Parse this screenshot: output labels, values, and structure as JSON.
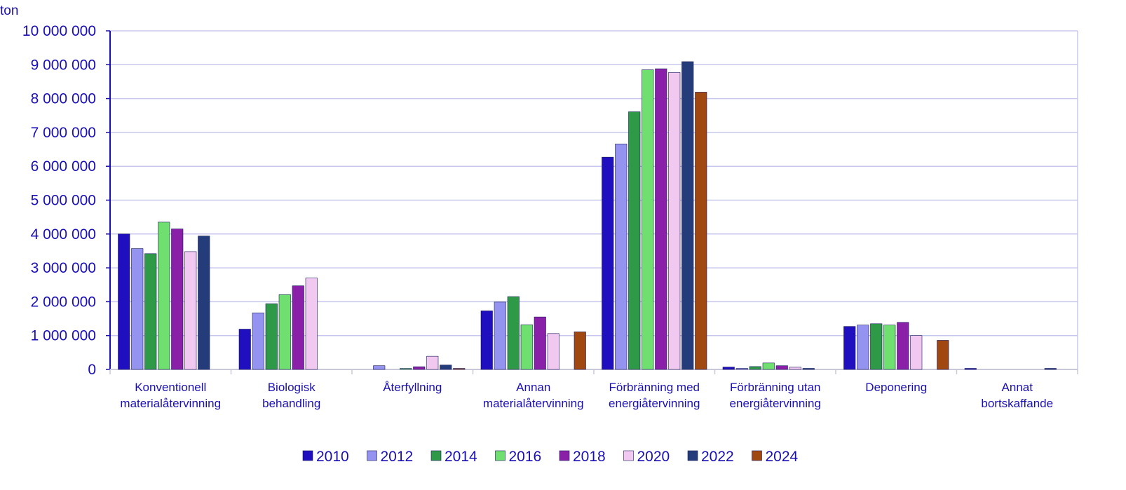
{
  "chart_data": {
    "type": "bar",
    "ylabel": "ton",
    "ylim": [
      0,
      10000000
    ],
    "yticks": [
      0,
      1000000,
      2000000,
      3000000,
      4000000,
      5000000,
      6000000,
      7000000,
      8000000,
      9000000,
      10000000
    ],
    "ytick_labels": [
      "0",
      "1 000 000",
      "2 000 000",
      "3 000 000",
      "4 000 000",
      "5 000 000",
      "6 000 000",
      "7 000 000",
      "8 000 000",
      "9 000 000",
      "10 000 000"
    ],
    "grid": true,
    "legend_position": "bottom",
    "categories": [
      [
        "Konventionell",
        "materialåtervinning"
      ],
      [
        "Biologisk",
        "behandling"
      ],
      [
        "Återfyllning"
      ],
      [
        "Annan",
        "materialåtervinning"
      ],
      [
        "Förbränning med",
        "energiåtervinning"
      ],
      [
        "Förbränning utan",
        "energiåtervinning"
      ],
      [
        "Deponering"
      ],
      [
        "Annat",
        "bortskaffande"
      ]
    ],
    "series": [
      {
        "name": "2010",
        "color": "#1f0fbf",
        "values": [
          4000000,
          1190000,
          0,
          1730000,
          6270000,
          70000,
          1270000,
          25000
        ]
      },
      {
        "name": "2012",
        "color": "#9494f0",
        "values": [
          3570000,
          1670000,
          110000,
          1990000,
          6660000,
          25000,
          1310000,
          0
        ]
      },
      {
        "name": "2014",
        "color": "#2e9a47",
        "values": [
          3420000,
          1940000,
          0,
          2150000,
          7610000,
          85000,
          1350000,
          0
        ]
      },
      {
        "name": "2016",
        "color": "#6fe06f",
        "values": [
          4350000,
          2210000,
          30000,
          1320000,
          8850000,
          190000,
          1310000,
          0
        ]
      },
      {
        "name": "2018",
        "color": "#8a1fa8",
        "values": [
          4150000,
          2470000,
          80000,
          1550000,
          8880000,
          110000,
          1390000,
          0
        ]
      },
      {
        "name": "2020",
        "color": "#f0c8f0",
        "values": [
          3480000,
          2700000,
          390000,
          1060000,
          8770000,
          65000,
          1000000,
          0
        ]
      },
      {
        "name": "2022",
        "color": "#243d7a",
        "values": [
          3940000,
          0,
          130000,
          0,
          9090000,
          25000,
          0,
          30000
        ]
      },
      {
        "name": "2024",
        "color": "#a14810",
        "values": [
          0,
          0,
          20000,
          1110000,
          8190000,
          0,
          860000,
          0
        ]
      }
    ]
  }
}
